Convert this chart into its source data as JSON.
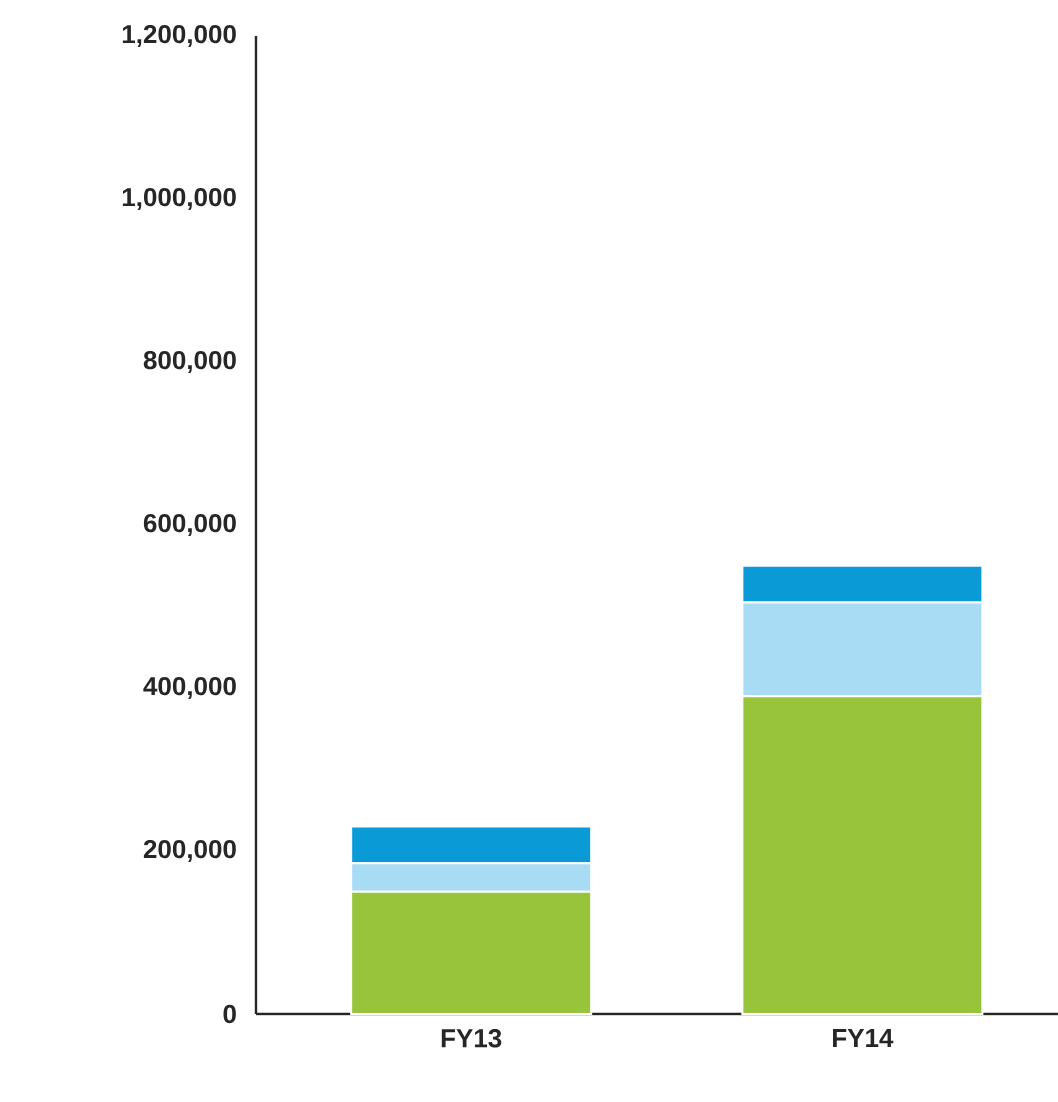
{
  "chart_data": {
    "type": "bar",
    "stacked": true,
    "categories": [
      "FY13",
      "FY14"
    ],
    "series": [
      {
        "color": "#97c43a",
        "values": [
          150000,
          390000
        ]
      },
      {
        "color": "#a8dcf5",
        "values": [
          35000,
          115000
        ]
      },
      {
        "color": "#0a9bd6",
        "values": [
          45000,
          45000
        ]
      }
    ],
    "ylim": [
      0,
      1200000
    ],
    "yticks": [
      {
        "value": 0,
        "label": "0"
      },
      {
        "value": 200000,
        "label": "200,000"
      },
      {
        "value": 400000,
        "label": "400,000"
      },
      {
        "value": 600000,
        "label": "600,000"
      },
      {
        "value": 800000,
        "label": "800,000"
      },
      {
        "value": 1000000,
        "label": "1,000,000"
      },
      {
        "value": 1200000,
        "label": "1,200,000"
      }
    ]
  }
}
